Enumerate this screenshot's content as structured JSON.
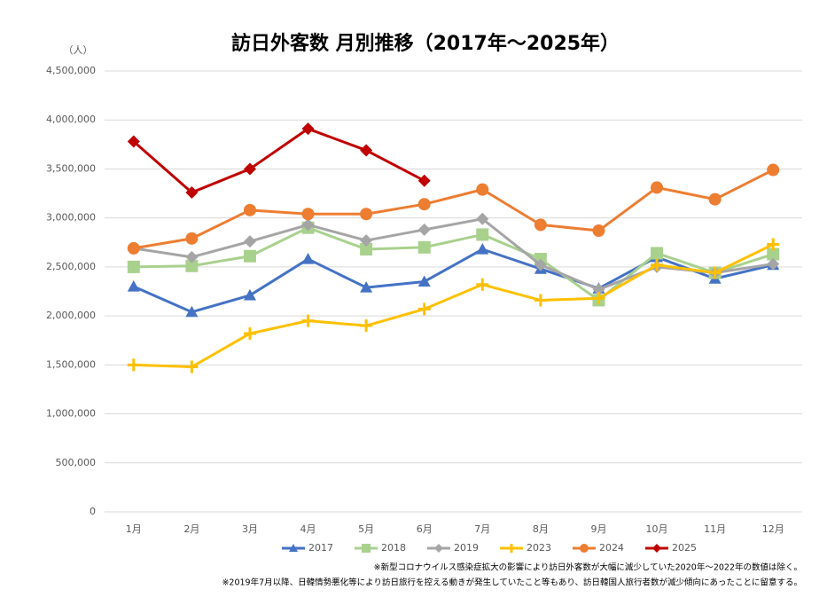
{
  "chart_data": {
    "type": "line",
    "title": "訪日外客数 月別推移（2017年～2025年）",
    "y_label": "（人）",
    "categories": [
      "1月",
      "2月",
      "3月",
      "4月",
      "5月",
      "6月",
      "7月",
      "8月",
      "9月",
      "10月",
      "11月",
      "12月"
    ],
    "ylim": [
      0,
      4500000
    ],
    "yticks": [
      0,
      {
        "value": 500000,
        "label": "500,000"
      },
      {
        "value": 1000000,
        "label": "1,000,000"
      },
      {
        "value": 1500000,
        "label": "1,500,000"
      },
      {
        "value": 2000000,
        "label": "2,000,000"
      },
      {
        "value": 2500000,
        "label": "2,500,000"
      },
      {
        "value": 3000000,
        "label": "3,000,000"
      },
      {
        "value": 3500000,
        "label": "3,500,000"
      },
      {
        "value": 4000000,
        "label": "4,000,000"
      },
      {
        "value": 4500000,
        "label": "4,500,000"
      }
    ],
    "grid": true,
    "legend": "bottom",
    "series": [
      {
        "name": "2017",
        "color": "#4472c4",
        "marker": "triangle",
        "values": [
          2300000,
          2040000,
          2210000,
          2580000,
          2290000,
          2350000,
          2680000,
          2480000,
          2280000,
          2600000,
          2380000,
          2520000
        ]
      },
      {
        "name": "2018",
        "color": "#a9d18e",
        "marker": "square",
        "values": [
          2500000,
          2510000,
          2610000,
          2900000,
          2680000,
          2700000,
          2830000,
          2580000,
          2160000,
          2640000,
          2440000,
          2630000
        ]
      },
      {
        "name": "2019",
        "color": "#a5a5a5",
        "marker": "diamond",
        "values": [
          2690000,
          2600000,
          2760000,
          2930000,
          2770000,
          2880000,
          2990000,
          2520000,
          2270000,
          2500000,
          2440000,
          2530000
        ]
      },
      {
        "name": "2023",
        "color": "#ffc000",
        "marker": "plus",
        "values": [
          1500000,
          1480000,
          1820000,
          1950000,
          1900000,
          2070000,
          2320000,
          2160000,
          2180000,
          2520000,
          2440000,
          2730000
        ]
      },
      {
        "name": "2024",
        "color": "#ed7d31",
        "marker": "circle",
        "values": [
          2690000,
          2790000,
          3080000,
          3040000,
          3040000,
          3140000,
          3290000,
          2930000,
          2870000,
          3310000,
          3190000,
          3490000
        ]
      },
      {
        "name": "2025",
        "color": "#c00000",
        "marker": "diamond",
        "values": [
          3780000,
          3260000,
          3500000,
          3910000,
          3690000,
          3380000,
          null,
          null,
          null,
          null,
          null,
          null
        ]
      }
    ],
    "notes": [
      "※新型コロナウイルス感染症拡大の影響により訪日外客数が大幅に減少していた2020年～2022年の数値は除く。",
      "※2019年7月以降、日韓情勢悪化等により訪日旅行を控える動きが発生していたこと等もあり、訪日韓国人旅行者数が減少傾向にあったことに留意する。"
    ]
  }
}
